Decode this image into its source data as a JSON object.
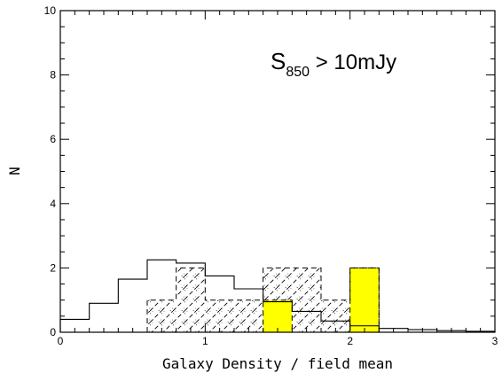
{
  "chart_data": {
    "type": "bar",
    "title": "",
    "xlabel": "Galaxy Density / field mean",
    "ylabel": "N",
    "xlim": [
      0,
      3
    ],
    "ylim": [
      0,
      10
    ],
    "x_ticks": [
      0,
      1,
      2,
      3
    ],
    "y_ticks": [
      0,
      2,
      4,
      6,
      8,
      10
    ],
    "grid": false,
    "annotation": {
      "text": "S",
      "subscript": "850",
      "rest": " > 10mJy"
    },
    "series": [
      {
        "style": "solid-step",
        "color": "#000000",
        "bin_edges": [
          0.0,
          0.2,
          0.4,
          0.6,
          0.8,
          1.0,
          1.2,
          1.4,
          1.6,
          1.8,
          2.0,
          2.2,
          2.4,
          2.6,
          2.8,
          3.0
        ],
        "values": [
          0.4,
          0.9,
          1.65,
          2.25,
          2.15,
          1.75,
          1.35,
          0.95,
          0.65,
          0.35,
          0.2,
          0.12,
          0.08,
          0.05,
          0.03
        ]
      },
      {
        "style": "dashed-hatched",
        "color": "#000000",
        "bin_edges": [
          0.6,
          0.8,
          1.0,
          1.2,
          1.4,
          1.6,
          1.8,
          2.0,
          2.2
        ],
        "values": [
          1,
          2,
          1,
          1,
          2,
          2,
          1,
          2
        ]
      },
      {
        "style": "yellow-filled",
        "color": "#ffff00",
        "bars": [
          {
            "x0": 1.4,
            "x1": 1.6,
            "value": 1
          },
          {
            "x0": 2.0,
            "x1": 2.2,
            "value": 2
          }
        ]
      }
    ]
  }
}
